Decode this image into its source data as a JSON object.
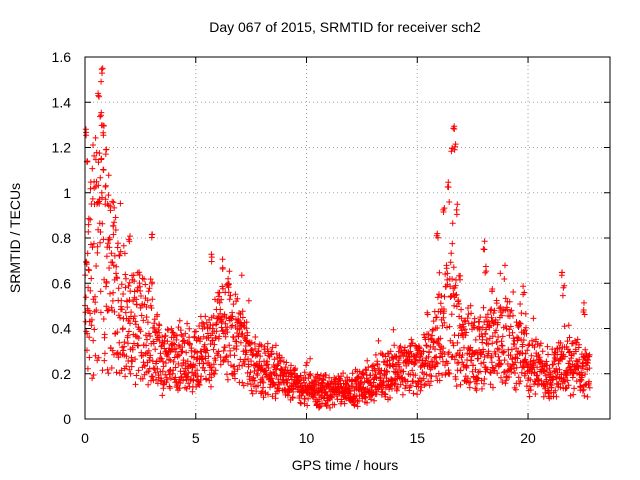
{
  "chart_data": {
    "type": "scatter",
    "title": "Day 067 of 2015, SRMTID for receiver sch2",
    "xlabel": "GPS time / hours",
    "ylabel": "SRMTID / TECUs",
    "xlim": [
      0,
      23.7
    ],
    "ylim": [
      0,
      1.6
    ],
    "x_ticks": [
      0,
      5,
      10,
      15,
      20
    ],
    "x_tick_labels": [
      "0",
      "5",
      "10",
      "15",
      "20"
    ],
    "y_ticks": [
      0,
      0.2,
      0.4,
      0.6,
      0.8,
      1,
      1.2,
      1.4,
      1.6
    ],
    "y_tick_labels": [
      "0",
      "0.2",
      "0.4",
      "0.6",
      "0.8",
      "1",
      "1.2",
      "1.4",
      "1.6"
    ],
    "grid": true,
    "marker": "+",
    "color": "#ff0000",
    "sample_interval_hours": 0.01,
    "x_start": 0.0,
    "series": [
      {
        "name": "SRMTID",
        "baseline_profile": {
          "x": [
            0,
            0.3,
            0.8,
            1.2,
            2,
            3,
            3.5,
            5,
            6,
            6.5,
            7.5,
            9,
            10,
            11,
            12.5,
            13.5,
            14.5,
            15.5,
            16,
            16.5,
            17,
            18,
            19,
            20,
            21,
            22,
            22.8
          ],
          "y": [
            0.55,
            0.7,
            0.75,
            0.6,
            0.42,
            0.4,
            0.25,
            0.28,
            0.35,
            0.4,
            0.25,
            0.18,
            0.13,
            0.12,
            0.14,
            0.2,
            0.22,
            0.25,
            0.35,
            0.5,
            0.3,
            0.3,
            0.35,
            0.25,
            0.2,
            0.25,
            0.2
          ]
        },
        "spikes": [
          {
            "x": 0.05,
            "y": 1.3
          },
          {
            "x": 0.1,
            "y": 1.15
          },
          {
            "x": 0.2,
            "y": 0.9
          },
          {
            "x": 0.45,
            "y": 1.05
          },
          {
            "x": 0.6,
            "y": 1.45
          },
          {
            "x": 0.7,
            "y": 1.38
          },
          {
            "x": 0.75,
            "y": 1.55
          },
          {
            "x": 0.85,
            "y": 1.3
          },
          {
            "x": 0.95,
            "y": 1.2
          },
          {
            "x": 1.05,
            "y": 1.0
          },
          {
            "x": 1.3,
            "y": 0.88
          },
          {
            "x": 2.0,
            "y": 0.82
          },
          {
            "x": 3.05,
            "y": 0.82
          },
          {
            "x": 5.7,
            "y": 0.75
          },
          {
            "x": 6.2,
            "y": 0.72
          },
          {
            "x": 6.5,
            "y": 0.65
          },
          {
            "x": 15.9,
            "y": 0.85
          },
          {
            "x": 16.2,
            "y": 0.95
          },
          {
            "x": 16.4,
            "y": 1.05
          },
          {
            "x": 16.55,
            "y": 1.2
          },
          {
            "x": 16.65,
            "y": 1.33
          },
          {
            "x": 16.7,
            "y": 1.25
          },
          {
            "x": 16.8,
            "y": 0.95
          },
          {
            "x": 16.9,
            "y": 0.65
          },
          {
            "x": 18.0,
            "y": 0.8
          },
          {
            "x": 18.1,
            "y": 0.7
          },
          {
            "x": 18.4,
            "y": 0.6
          },
          {
            "x": 19.8,
            "y": 0.6
          },
          {
            "x": 21.5,
            "y": 0.66
          },
          {
            "x": 21.6,
            "y": 0.6
          },
          {
            "x": 22.5,
            "y": 0.52
          }
        ]
      }
    ]
  }
}
